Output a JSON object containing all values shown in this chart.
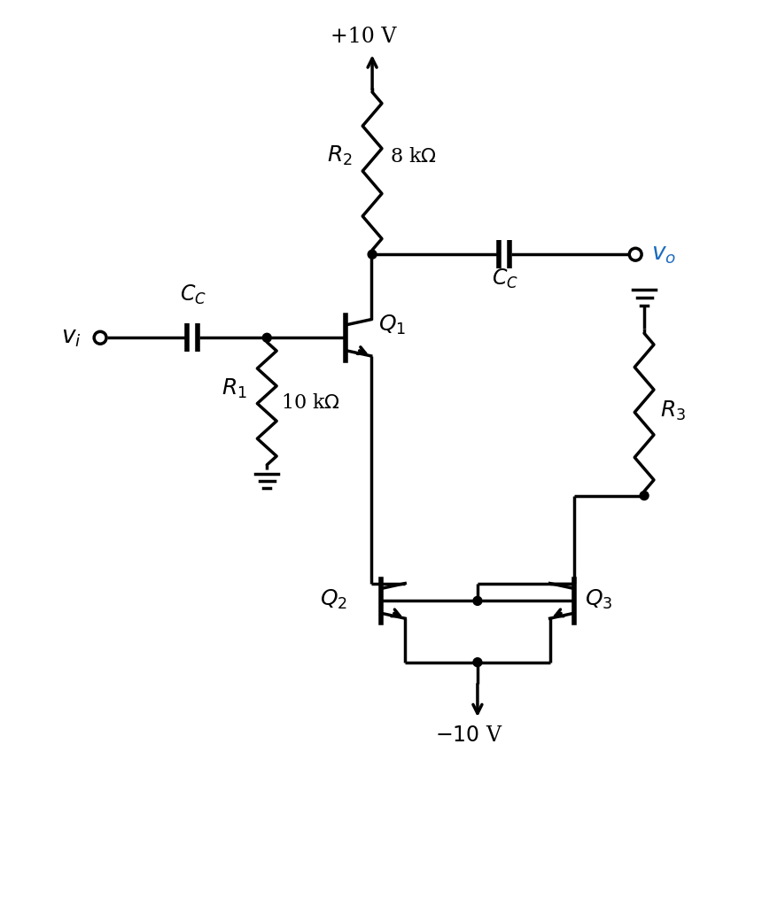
{
  "bg_color": "#ffffff",
  "line_color": "#000000",
  "text_color": "#000000",
  "blue_color": "#1a6bbf",
  "lw": 2.5,
  "figsize": [
    8.6,
    10.24
  ],
  "dpi": 100
}
